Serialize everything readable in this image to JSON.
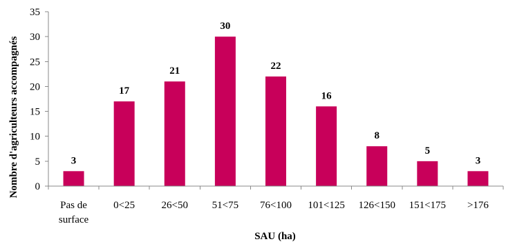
{
  "chart_data": {
    "type": "bar",
    "categories": [
      "Pas de\nsurface",
      "0<25",
      "26<50",
      "51<75",
      "76<100",
      "101<125",
      "126<150",
      "151<175",
      ">176"
    ],
    "values": [
      3,
      17,
      21,
      30,
      22,
      16,
      8,
      5,
      3
    ],
    "data_labels": [
      "3",
      "17",
      "21",
      "30",
      "22",
      "16",
      "8",
      "5",
      "3"
    ],
    "title": "",
    "xlabel": "SAU (ha)",
    "ylabel": "Nombre d'agriculteurs accompagnés",
    "ylim": [
      0,
      35
    ],
    "yticks": [
      "0",
      "5",
      "10",
      "15",
      "20",
      "25",
      "30",
      "35"
    ],
    "grid": false,
    "legend": "none",
    "bar_color": "#c8005a",
    "axis_color": "#888888"
  }
}
